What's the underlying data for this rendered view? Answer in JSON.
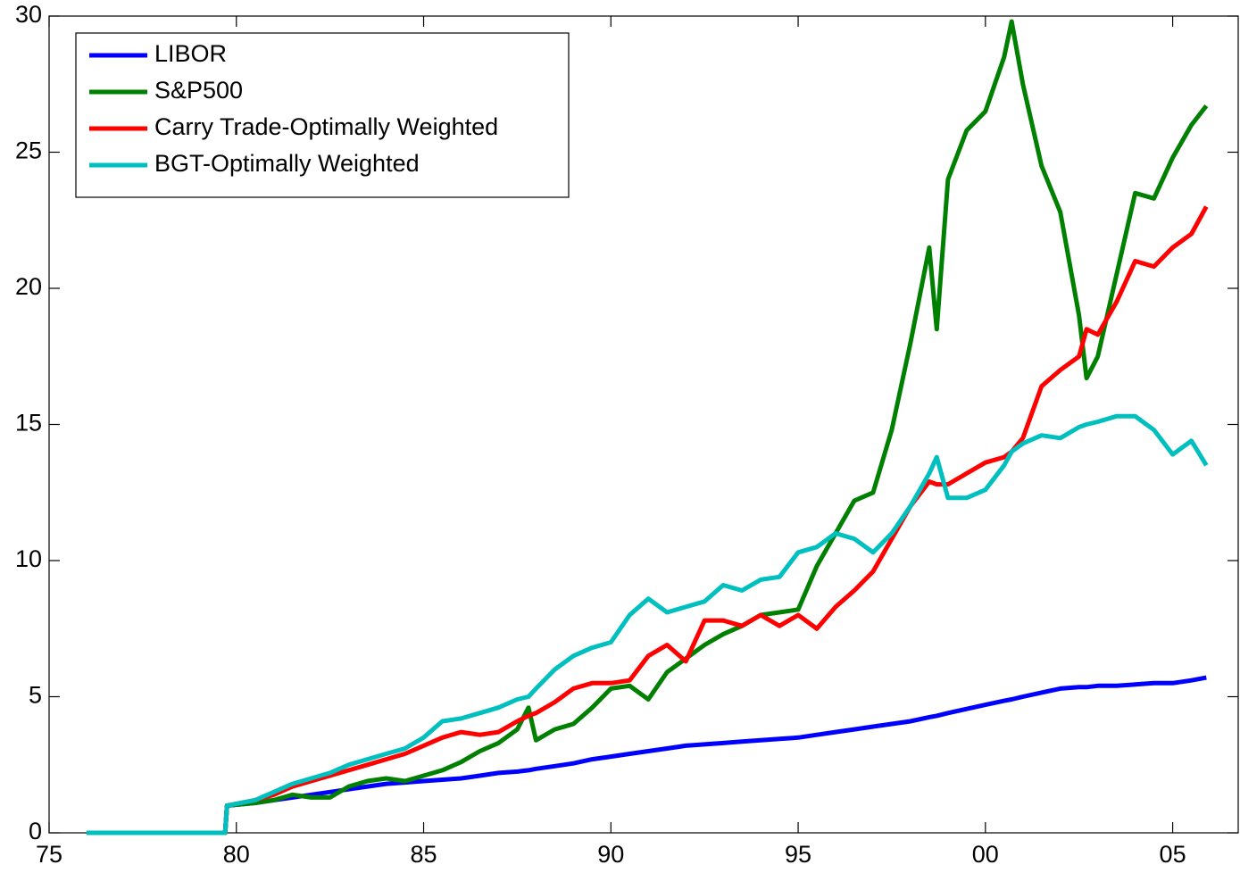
{
  "chart_data": {
    "type": "line",
    "x": [
      1976,
      1979.7,
      1979.75,
      1980.5,
      1981,
      1981.5,
      1982,
      1982.5,
      1983,
      1983.5,
      1984,
      1984.5,
      1985,
      1985.5,
      1986,
      1986.5,
      1987,
      1987.5,
      1987.8,
      1988,
      1988.5,
      1989,
      1989.5,
      1990,
      1990.5,
      1991,
      1991.5,
      1992,
      1992.5,
      1993,
      1993.5,
      1994,
      1994.5,
      1995,
      1995.5,
      1996,
      1996.5,
      1997,
      1997.5,
      1998,
      1998.5,
      1998.7,
      1999,
      1999.5,
      2000,
      2000.5,
      2000.7,
      2001,
      2001.5,
      2002,
      2002.5,
      2002.7,
      2003,
      2003.5,
      2004,
      2004.5,
      2005,
      2005.5,
      2005.9
    ],
    "series": [
      {
        "name": "LIBOR",
        "color": "#0000ff",
        "values": [
          0,
          0,
          1,
          1.1,
          1.2,
          1.3,
          1.4,
          1.5,
          1.6,
          1.7,
          1.8,
          1.85,
          1.9,
          1.95,
          2.0,
          2.1,
          2.2,
          2.25,
          2.3,
          2.35,
          2.45,
          2.55,
          2.7,
          2.8,
          2.9,
          3.0,
          3.1,
          3.2,
          3.25,
          3.3,
          3.35,
          3.4,
          3.45,
          3.5,
          3.6,
          3.7,
          3.8,
          3.9,
          4.0,
          4.1,
          4.25,
          4.3,
          4.4,
          4.55,
          4.7,
          4.85,
          4.9,
          5.0,
          5.15,
          5.3,
          5.35,
          5.35,
          5.4,
          5.4,
          5.45,
          5.5,
          5.5,
          5.6,
          5.7
        ]
      },
      {
        "name": "S&P500",
        "color": "#008000",
        "values": [
          0,
          0,
          1,
          1.1,
          1.2,
          1.4,
          1.3,
          1.3,
          1.7,
          1.9,
          2.0,
          1.9,
          2.1,
          2.3,
          2.6,
          3.0,
          3.3,
          3.8,
          4.6,
          3.4,
          3.8,
          4.0,
          4.6,
          5.3,
          5.4,
          4.9,
          5.9,
          6.4,
          6.9,
          7.3,
          7.6,
          8.0,
          8.1,
          8.2,
          9.8,
          11,
          12.2,
          12.5,
          14.8,
          18,
          21.5,
          18.5,
          24,
          25.8,
          26.5,
          28.5,
          29.8,
          27.5,
          24.5,
          22.8,
          19,
          16.7,
          17.5,
          20.5,
          23.5,
          23.3,
          24.8,
          26,
          26.7
        ]
      },
      {
        "name": "Carry Trade-Optimally Weighted",
        "color": "#ff0000",
        "values": [
          0,
          0,
          1,
          1.2,
          1.4,
          1.7,
          1.9,
          2.1,
          2.3,
          2.5,
          2.7,
          2.9,
          3.2,
          3.5,
          3.7,
          3.6,
          3.7,
          4.1,
          4.3,
          4.4,
          4.8,
          5.3,
          5.5,
          5.5,
          5.6,
          6.5,
          6.9,
          6.3,
          7.8,
          7.8,
          7.6,
          8.0,
          7.6,
          8.0,
          7.5,
          8.3,
          8.9,
          9.6,
          10.8,
          12.0,
          12.9,
          12.8,
          12.8,
          13.2,
          13.6,
          13.8,
          14.0,
          14.5,
          16.4,
          17.0,
          17.5,
          18.5,
          18.3,
          19.5,
          21.0,
          20.8,
          21.5,
          22.0,
          23.0
        ]
      },
      {
        "name": "BGT-Optimally Weighted",
        "color": "#00bfbf",
        "values": [
          0,
          0,
          1,
          1.2,
          1.5,
          1.8,
          2.0,
          2.2,
          2.5,
          2.7,
          2.9,
          3.1,
          3.5,
          4.1,
          4.2,
          4.4,
          4.6,
          4.9,
          5.0,
          5.3,
          6.0,
          6.5,
          6.8,
          7.0,
          8.0,
          8.6,
          8.1,
          8.3,
          8.5,
          9.1,
          8.9,
          9.3,
          9.4,
          10.3,
          10.5,
          11.0,
          10.8,
          10.3,
          11.0,
          12.0,
          13.2,
          13.8,
          12.3,
          12.3,
          12.6,
          13.5,
          14.0,
          14.3,
          14.6,
          14.5,
          14.9,
          15.0,
          15.1,
          15.3,
          15.3,
          14.8,
          13.9,
          14.4,
          13.5
        ]
      }
    ],
    "xlim": [
      1975,
      2006.75
    ],
    "xticks": [
      {
        "value": 1975,
        "label": "75"
      },
      {
        "value": 1980,
        "label": "80"
      },
      {
        "value": 1985,
        "label": "85"
      },
      {
        "value": 1990,
        "label": "90"
      },
      {
        "value": 1995,
        "label": "95"
      },
      {
        "value": 2000,
        "label": "00"
      },
      {
        "value": 2005,
        "label": "05"
      }
    ],
    "ylim": [
      0,
      30
    ],
    "yticks": [
      0,
      5,
      10,
      15,
      20,
      25,
      30
    ],
    "legend": "upper left"
  }
}
